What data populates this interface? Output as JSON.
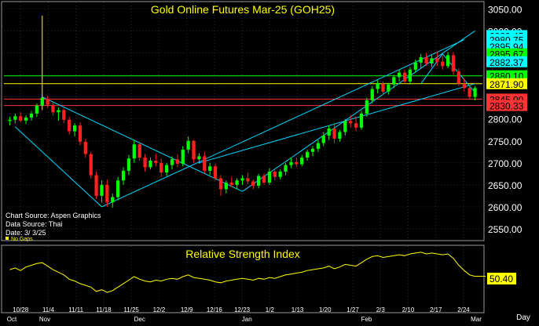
{
  "chart_data": [
    {
      "type": "candlestick",
      "title": "Gold Online Futures Mar-25 (GOH25)",
      "source_lines": [
        "Chart Source: Aspen Graphics",
        "Data Source: Thai",
        "Date:   3/ 3/25"
      ],
      "no_gaps_label": "No Gaps",
      "y_ticks": [
        3050,
        3000,
        2950,
        2900,
        2850,
        2800,
        2750,
        2700,
        2650,
        2600,
        2550
      ],
      "y_tick_labels": [
        "3050.00",
        "3000.00",
        "2950.00",
        "2900.00",
        "2850.00",
        "2800.00",
        "2750.00",
        "2700.00",
        "2650.00",
        "2600.00",
        "2550.00"
      ],
      "ylim": [
        2525,
        3065
      ],
      "date_labels": [
        "10/28",
        "11/4",
        "11/11",
        "11/18",
        "11/25",
        "12/2",
        "12/9",
        "12/16",
        "12/23",
        "1/2",
        "1/13",
        "1/20",
        "1/27",
        "2/3",
        "2/10",
        "2/17",
        "2/24"
      ],
      "month_labels": [
        "Oct",
        "Nov",
        "Dec",
        "Jan",
        "Feb",
        "Mar"
      ],
      "price_levels": [
        {
          "label": "2989.45",
          "value": 2989.45,
          "color": "#00ffff"
        },
        {
          "label": "2980.75",
          "value": 2980.75,
          "color": "#00ffff"
        },
        {
          "label": "2895.94",
          "value": 2965.0,
          "color": "#00ffff"
        },
        {
          "label": "2895.67",
          "value": 2948.0,
          "color": "#00ff00"
        },
        {
          "label": "2882.37",
          "value": 2930.0,
          "color": "#00ffff"
        },
        {
          "label": "2880.10",
          "value": 2898.0,
          "color": "#00ff00"
        },
        {
          "label": "2871.90",
          "value": 2880.0,
          "color": "#ffff00"
        },
        {
          "label": "2845.00",
          "value": 2845.0,
          "color": "#ff3333"
        },
        {
          "label": "2830.33",
          "value": 2830.33,
          "color": "#ff3333"
        }
      ],
      "candles": [
        [
          2795,
          2805,
          2785,
          2798
        ],
        [
          2798,
          2812,
          2790,
          2806
        ],
        [
          2806,
          2815,
          2792,
          2796
        ],
        [
          2796,
          2808,
          2788,
          2803
        ],
        [
          2803,
          2818,
          2796,
          2812
        ],
        [
          2812,
          2835,
          2805,
          2830
        ],
        [
          2830,
          3035,
          2820,
          2848
        ],
        [
          2846,
          2852,
          2825,
          2832
        ],
        [
          2832,
          2840,
          2808,
          2815
        ],
        [
          2815,
          2826,
          2796,
          2820
        ],
        [
          2820,
          2824,
          2790,
          2798
        ],
        [
          2798,
          2805,
          2765,
          2772
        ],
        [
          2772,
          2790,
          2760,
          2785
        ],
        [
          2785,
          2792,
          2740,
          2748
        ],
        [
          2748,
          2755,
          2712,
          2720
        ],
        [
          2720,
          2725,
          2665,
          2672
        ],
        [
          2672,
          2680,
          2618,
          2625
        ],
        [
          2625,
          2660,
          2610,
          2650
        ],
        [
          2650,
          2662,
          2600,
          2610
        ],
        [
          2610,
          2630,
          2598,
          2622
        ],
        [
          2622,
          2668,
          2615,
          2660
        ],
        [
          2660,
          2690,
          2650,
          2682
        ],
        [
          2682,
          2718,
          2672,
          2710
        ],
        [
          2710,
          2752,
          2700,
          2742
        ],
        [
          2742,
          2748,
          2705,
          2712
        ],
        [
          2712,
          2720,
          2680,
          2690
        ],
        [
          2690,
          2712,
          2685,
          2705
        ],
        [
          2705,
          2720,
          2692,
          2700
        ],
        [
          2700,
          2710,
          2668,
          2678
        ],
        [
          2678,
          2700,
          2670,
          2695
        ],
        [
          2695,
          2715,
          2685,
          2708
        ],
        [
          2708,
          2720,
          2690,
          2698
        ],
        [
          2698,
          2738,
          2692,
          2730
        ],
        [
          2730,
          2760,
          2722,
          2750
        ],
        [
          2750,
          2752,
          2700,
          2708
        ],
        [
          2708,
          2722,
          2698,
          2715
        ],
        [
          2715,
          2725,
          2676,
          2682
        ],
        [
          2682,
          2700,
          2672,
          2692
        ],
        [
          2692,
          2698,
          2660,
          2665
        ],
        [
          2665,
          2672,
          2625,
          2640
        ],
        [
          2640,
          2660,
          2630,
          2655
        ],
        [
          2655,
          2668,
          2645,
          2650
        ],
        [
          2650,
          2665,
          2640,
          2660
        ],
        [
          2660,
          2672,
          2650,
          2665
        ],
        [
          2665,
          2678,
          2652,
          2658
        ],
        [
          2658,
          2662,
          2640,
          2648
        ],
        [
          2648,
          2675,
          2642,
          2670
        ],
        [
          2670,
          2676,
          2650,
          2655
        ],
        [
          2655,
          2688,
          2650,
          2680
        ],
        [
          2680,
          2686,
          2660,
          2668
        ],
        [
          2668,
          2685,
          2662,
          2680
        ],
        [
          2680,
          2700,
          2672,
          2695
        ],
        [
          2695,
          2710,
          2688,
          2702
        ],
        [
          2702,
          2712,
          2690,
          2697
        ],
        [
          2697,
          2718,
          2692,
          2712
        ],
        [
          2712,
          2730,
          2705,
          2725
        ],
        [
          2725,
          2738,
          2715,
          2732
        ],
        [
          2732,
          2752,
          2725,
          2745
        ],
        [
          2745,
          2770,
          2738,
          2762
        ],
        [
          2762,
          2785,
          2752,
          2778
        ],
        [
          2778,
          2790,
          2745,
          2755
        ],
        [
          2755,
          2775,
          2748,
          2770
        ],
        [
          2770,
          2800,
          2762,
          2795
        ],
        [
          2795,
          2808,
          2780,
          2790
        ],
        [
          2790,
          2805,
          2772,
          2780
        ],
        [
          2780,
          2818,
          2775,
          2812
        ],
        [
          2812,
          2848,
          2805,
          2842
        ],
        [
          2842,
          2875,
          2835,
          2868
        ],
        [
          2868,
          2888,
          2858,
          2880
        ],
        [
          2880,
          2885,
          2855,
          2862
        ],
        [
          2862,
          2882,
          2855,
          2878
        ],
        [
          2878,
          2900,
          2870,
          2895
        ],
        [
          2895,
          2912,
          2885,
          2905
        ],
        [
          2905,
          2912,
          2880,
          2885
        ],
        [
          2885,
          2918,
          2878,
          2912
        ],
        [
          2912,
          2935,
          2905,
          2928
        ],
        [
          2928,
          2948,
          2915,
          2940
        ],
        [
          2940,
          2950,
          2920,
          2926
        ],
        [
          2926,
          2945,
          2918,
          2938
        ],
        [
          2938,
          2952,
          2920,
          2930
        ],
        [
          2930,
          2945,
          2912,
          2920
        ],
        [
          2920,
          2952,
          2915,
          2945
        ],
        [
          2945,
          2952,
          2900,
          2908
        ],
        [
          2908,
          2915,
          2875,
          2880
        ],
        [
          2880,
          2892,
          2862,
          2870
        ],
        [
          2870,
          2878,
          2845,
          2850
        ],
        [
          2850,
          2875,
          2842,
          2870
        ]
      ],
      "trendlines": [
        {
          "from": [
            1,
            2782
          ],
          "to": [
            17,
            2600
          ],
          "color": "#00d8ff"
        },
        {
          "from": [
            6,
            2850
          ],
          "to": [
            43,
            2635
          ],
          "color": "#00d8ff"
        },
        {
          "from": [
            17,
            2600
          ],
          "to": [
            84,
            2980
          ],
          "color": "#00d8ff"
        },
        {
          "from": [
            43,
            2635
          ],
          "to": [
            86,
            3000
          ],
          "color": "#00d8ff"
        },
        {
          "from": [
            35,
            2700
          ],
          "to": [
            86,
            2880
          ],
          "color": "#00d8ff"
        },
        {
          "from": [
            76,
            2880
          ],
          "to": [
            80,
            2948
          ],
          "color": "#00d8ff"
        },
        {
          "from": [
            80,
            2948
          ],
          "to": [
            86,
            2860
          ],
          "color": "#00d8ff"
        }
      ],
      "horizontal_lines": [
        {
          "value": 2898.0,
          "color": "#00ff00"
        },
        {
          "value": 2880.0,
          "color": "#ffff00"
        },
        {
          "value": 2845.0,
          "color": "#ff3333"
        },
        {
          "value": 2830.33,
          "color": "#ff3333"
        }
      ]
    },
    {
      "type": "line",
      "title": "Relative Strength Index",
      "last_value_label": "50.40",
      "ylim": [
        15,
        85
      ],
      "last_value": 50.4,
      "values": [
        58,
        60,
        57,
        61,
        63,
        65,
        66,
        62,
        58,
        55,
        52,
        47,
        45,
        42,
        40,
        38,
        33,
        35,
        32,
        34,
        38,
        42,
        46,
        50,
        47,
        45,
        44,
        46,
        45,
        47,
        48,
        47,
        50,
        52,
        49,
        48,
        47,
        46,
        44,
        43,
        45,
        46,
        47,
        48,
        47,
        46,
        48,
        47,
        49,
        48,
        50,
        52,
        53,
        54,
        55,
        57,
        58,
        59,
        60,
        62,
        59,
        61,
        64,
        63,
        62,
        66,
        70,
        73,
        74,
        72,
        73,
        74,
        75,
        74,
        76,
        77,
        78,
        76,
        77,
        76,
        75,
        76,
        71,
        63,
        57,
        52,
        50.4
      ]
    }
  ],
  "ui": {
    "day_button": "Day"
  }
}
